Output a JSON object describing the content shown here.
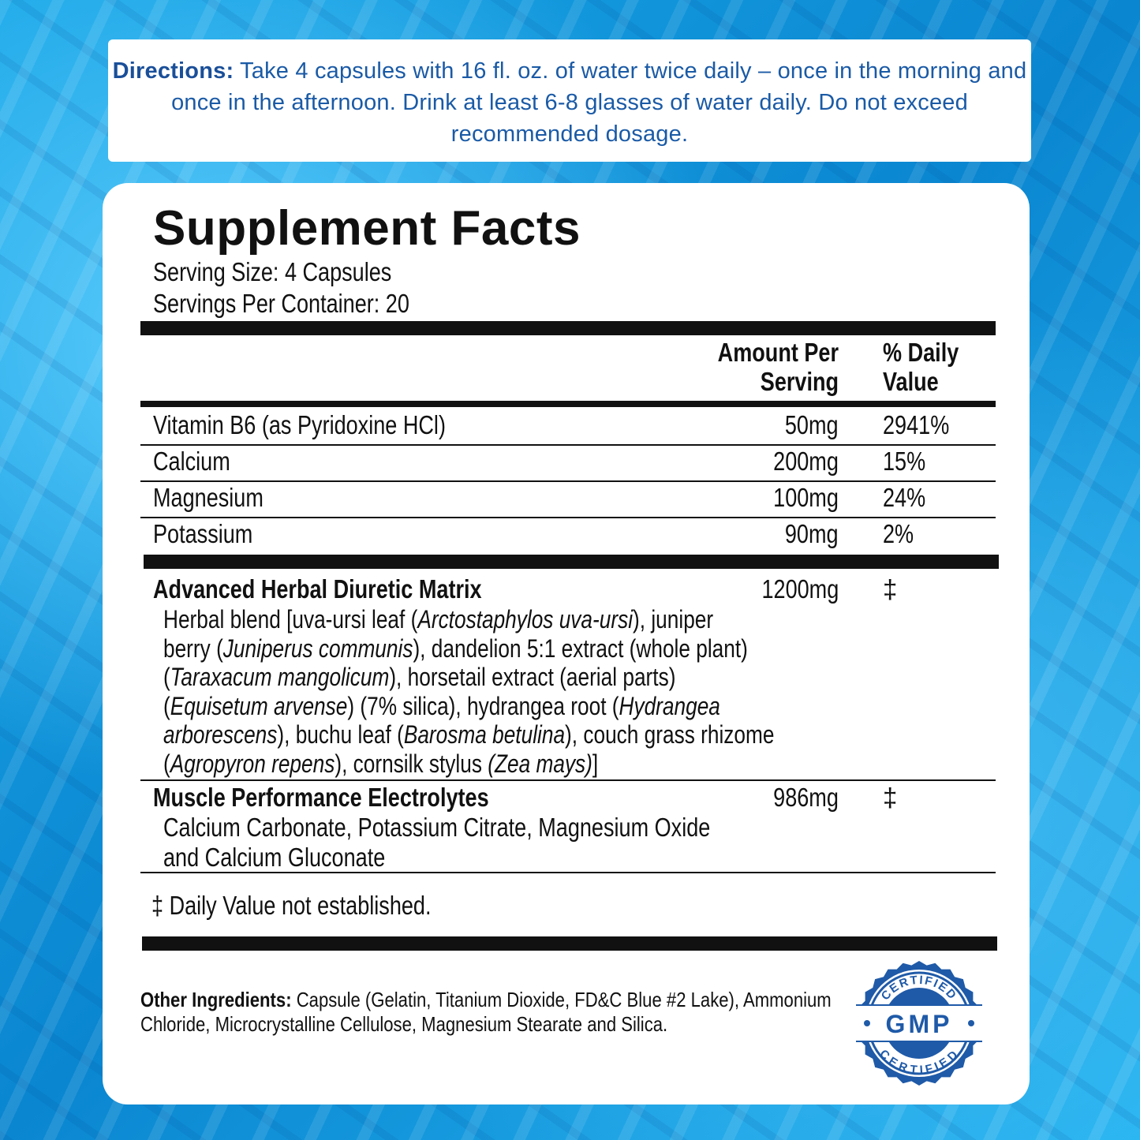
{
  "directions": {
    "label": "Directions:",
    "text": " Take 4 capsules with 16 fl. oz. of water twice daily – once in the morning and once in the afternoon. Drink at least 6-8 glasses of water daily.  Do not exceed recommended dosage."
  },
  "facts": {
    "title": "Supplement Facts",
    "serving_size": "Serving Size: 4 Capsules",
    "servings_per_container": "Servings Per Container: 20",
    "col_amount": [
      "Amount Per",
      "Serving"
    ],
    "col_dv": [
      "% Daily",
      "Value"
    ],
    "rows": [
      {
        "name": "Vitamin B6 (as Pyridoxine HCl)",
        "amount": "50mg",
        "dv": "2941%"
      },
      {
        "name": "Calcium",
        "amount": "200mg",
        "dv": "15%"
      },
      {
        "name": "Magnesium",
        "amount": "100mg",
        "dv": "24%"
      },
      {
        "name": "Potassium",
        "amount": "90mg",
        "dv": "2%"
      }
    ],
    "blend": {
      "name": "Advanced Herbal Diuretic Matrix",
      "amount": "1200mg",
      "dv": "‡",
      "lines": [
        [
          {
            "t": "Herbal blend [uva-ursi leaf ("
          },
          {
            "t": "Arctostaphylos uva-ursi",
            "i": true
          },
          {
            "t": "), juniper"
          }
        ],
        [
          {
            "t": "berry ("
          },
          {
            "t": "Juniperus communis",
            "i": true
          },
          {
            "t": "), dandelion 5:1 extract (whole plant)"
          }
        ],
        [
          {
            "t": "("
          },
          {
            "t": "Taraxacum mangolicum",
            "i": true
          },
          {
            "t": "), horsetail extract (aerial parts)"
          }
        ],
        [
          {
            "t": "("
          },
          {
            "t": "Equisetum arvense",
            "i": true
          },
          {
            "t": ") (7% silica), hydrangea root ("
          },
          {
            "t": "Hydrangea",
            "i": true
          }
        ],
        [
          {
            "t": "arborescens",
            "i": true
          },
          {
            "t": "), buchu leaf ("
          },
          {
            "t": "Barosma betulina",
            "i": true
          },
          {
            "t": "), couch grass rhizome"
          }
        ],
        [
          {
            "t": "("
          },
          {
            "t": "Agropyron repens",
            "i": true
          },
          {
            "t": "), cornsilk stylus "
          },
          {
            "t": "(Zea mays)",
            "i": true
          },
          {
            "t": "]"
          }
        ]
      ]
    },
    "electrolytes": {
      "name": "Muscle Performance Electrolytes",
      "amount": "986mg",
      "dv": "‡",
      "lines": [
        "Calcium Carbonate, Potassium Citrate, Magnesium Oxide",
        "and Calcium Gluconate"
      ]
    },
    "footnote": "‡ Daily Value not established."
  },
  "other": {
    "label": "Other Ingredients:",
    "text": " Capsule (Gelatin, Titanium Dioxide, FD&C Blue #2 Lake), Ammonium Chloride, Microcrystalline Cellulose, Magnesium Stearate and Silica."
  },
  "badge": {
    "top": "CERTIFIED",
    "center": "GMP",
    "bottom": "CERTIFIED",
    "color": "#1f5aa8"
  }
}
